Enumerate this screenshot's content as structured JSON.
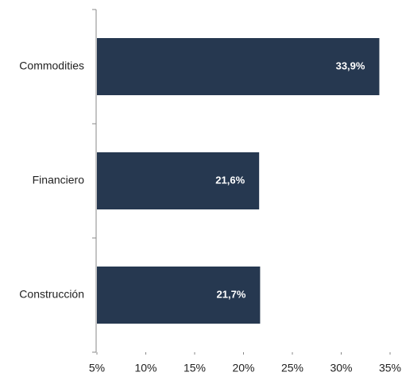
{
  "chart_data": {
    "type": "barh",
    "categories": [
      "Commodities",
      "Financiero",
      "Construcción"
    ],
    "values": [
      33.9,
      21.6,
      21.7
    ],
    "value_labels": [
      "33,9%",
      "21,6%",
      "21,7%"
    ],
    "color": "#263850",
    "xlim": [
      5,
      35
    ],
    "xticks": [
      {
        "value": 5,
        "label": "5%"
      },
      {
        "value": 10,
        "label": "10%"
      },
      {
        "value": 15,
        "label": "15%"
      },
      {
        "value": 20,
        "label": "20%"
      },
      {
        "value": 25,
        "label": "25%"
      },
      {
        "value": 30,
        "label": "30%"
      },
      {
        "value": 35,
        "label": "35%"
      }
    ],
    "grid": false
  }
}
